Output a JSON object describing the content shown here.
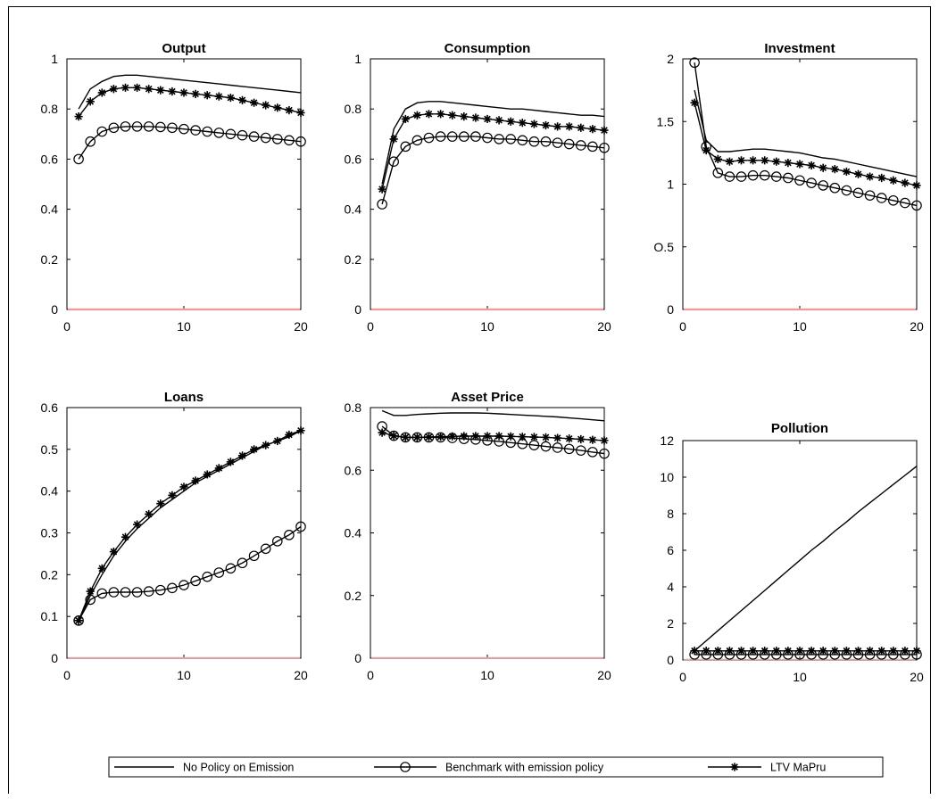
{
  "legend": {
    "entries": [
      {
        "name": "No Policy on Emission",
        "marker": "none"
      },
      {
        "name": "Benchmark with emission policy",
        "marker": "circle"
      },
      {
        "name": "LTV MaPru",
        "marker": "star"
      }
    ]
  },
  "colors": {
    "line": "#000000",
    "zero_line": "#ff9a9a",
    "background": "#ffffff"
  },
  "chart_data": [
    {
      "type": "line",
      "title": "Output",
      "xlabel": "",
      "ylabel": "",
      "xlim": [
        0,
        20
      ],
      "ylim": [
        0,
        1
      ],
      "xticks": [
        0,
        10,
        20
      ],
      "yticks": [
        0,
        0.2,
        0.4,
        0.6,
        0.8,
        1
      ],
      "ytick_labels": [
        "0",
        "0.2",
        "0.4",
        "0.6",
        "0.8",
        "1"
      ],
      "grid": false,
      "zero_line": true,
      "x": [
        1,
        2,
        3,
        4,
        5,
        6,
        7,
        8,
        9,
        10,
        11,
        12,
        13,
        14,
        15,
        16,
        17,
        18,
        19,
        20
      ],
      "series": [
        {
          "marker": "none",
          "values": [
            0.8,
            0.88,
            0.91,
            0.93,
            0.935,
            0.935,
            0.93,
            0.925,
            0.92,
            0.915,
            0.91,
            0.905,
            0.9,
            0.895,
            0.89,
            0.885,
            0.88,
            0.875,
            0.87,
            0.865
          ]
        },
        {
          "marker": "circle",
          "values": [
            0.6,
            0.67,
            0.71,
            0.725,
            0.73,
            0.73,
            0.73,
            0.728,
            0.725,
            0.72,
            0.715,
            0.71,
            0.705,
            0.7,
            0.695,
            0.69,
            0.685,
            0.68,
            0.675,
            0.67
          ]
        },
        {
          "marker": "star",
          "values": [
            0.77,
            0.83,
            0.865,
            0.88,
            0.885,
            0.885,
            0.88,
            0.875,
            0.87,
            0.865,
            0.86,
            0.855,
            0.85,
            0.845,
            0.835,
            0.825,
            0.815,
            0.805,
            0.795,
            0.785
          ]
        }
      ]
    },
    {
      "type": "line",
      "title": "Consumption",
      "xlabel": "",
      "ylabel": "",
      "xlim": [
        0,
        20
      ],
      "ylim": [
        0,
        1
      ],
      "xticks": [
        0,
        10,
        20
      ],
      "yticks": [
        0,
        0.2,
        0.4,
        0.6,
        0.8,
        1
      ],
      "ytick_labels": [
        "0",
        "0.2",
        "0.4",
        "0.6",
        "0.8",
        "1"
      ],
      "grid": false,
      "zero_line": true,
      "x": [
        1,
        2,
        3,
        4,
        5,
        6,
        7,
        8,
        9,
        10,
        11,
        12,
        13,
        14,
        15,
        16,
        17,
        18,
        19,
        20
      ],
      "series": [
        {
          "marker": "none",
          "values": [
            0.5,
            0.72,
            0.8,
            0.825,
            0.83,
            0.83,
            0.825,
            0.82,
            0.815,
            0.81,
            0.805,
            0.8,
            0.8,
            0.795,
            0.79,
            0.785,
            0.78,
            0.775,
            0.775,
            0.77
          ]
        },
        {
          "marker": "circle",
          "values": [
            0.42,
            0.59,
            0.65,
            0.675,
            0.685,
            0.69,
            0.69,
            0.69,
            0.69,
            0.685,
            0.68,
            0.68,
            0.675,
            0.67,
            0.67,
            0.665,
            0.66,
            0.655,
            0.65,
            0.645
          ]
        },
        {
          "marker": "star",
          "values": [
            0.48,
            0.68,
            0.76,
            0.775,
            0.78,
            0.78,
            0.775,
            0.77,
            0.765,
            0.76,
            0.755,
            0.75,
            0.745,
            0.74,
            0.735,
            0.73,
            0.73,
            0.725,
            0.72,
            0.715
          ]
        }
      ]
    },
    {
      "type": "line",
      "title": "Investment",
      "xlabel": "",
      "ylabel": "",
      "xlim": [
        0,
        20
      ],
      "ylim": [
        0,
        2
      ],
      "xticks": [
        0,
        10,
        20
      ],
      "yticks": [
        0,
        0.5,
        1,
        1.5,
        2
      ],
      "ytick_labels": [
        "0",
        "O.5",
        "1",
        "1.5",
        "2"
      ],
      "grid": false,
      "zero_line": true,
      "x": [
        1,
        2,
        3,
        4,
        5,
        6,
        7,
        8,
        9,
        10,
        11,
        12,
        13,
        14,
        15,
        16,
        17,
        18,
        19,
        20
      ],
      "series": [
        {
          "marker": "none",
          "values": [
            1.75,
            1.35,
            1.26,
            1.26,
            1.27,
            1.28,
            1.28,
            1.27,
            1.26,
            1.25,
            1.23,
            1.21,
            1.2,
            1.18,
            1.16,
            1.14,
            1.12,
            1.1,
            1.08,
            1.06
          ]
        },
        {
          "marker": "circle",
          "values": [
            1.97,
            1.3,
            1.09,
            1.06,
            1.06,
            1.07,
            1.07,
            1.06,
            1.05,
            1.03,
            1.01,
            0.99,
            0.97,
            0.95,
            0.93,
            0.91,
            0.89,
            0.87,
            0.85,
            0.83
          ]
        },
        {
          "marker": "star",
          "values": [
            1.65,
            1.27,
            1.2,
            1.18,
            1.19,
            1.19,
            1.19,
            1.18,
            1.17,
            1.16,
            1.15,
            1.13,
            1.12,
            1.1,
            1.08,
            1.06,
            1.05,
            1.03,
            1.01,
            0.99
          ]
        }
      ]
    },
    {
      "type": "line",
      "title": "Loans",
      "xlabel": "",
      "ylabel": "",
      "xlim": [
        0,
        20
      ],
      "ylim": [
        0,
        0.6
      ],
      "xticks": [
        0,
        10,
        20
      ],
      "yticks": [
        0,
        0.1,
        0.2,
        0.3,
        0.4,
        0.5,
        0.6
      ],
      "ytick_labels": [
        "0",
        "0.1",
        "0.2",
        "0.3",
        "0.4",
        "0.5",
        "0.6"
      ],
      "grid": false,
      "zero_line": true,
      "x": [
        1,
        2,
        3,
        4,
        5,
        6,
        7,
        8,
        9,
        10,
        11,
        12,
        13,
        14,
        15,
        16,
        17,
        18,
        19,
        20
      ],
      "series": [
        {
          "marker": "none",
          "values": [
            0.09,
            0.15,
            0.2,
            0.245,
            0.28,
            0.31,
            0.335,
            0.36,
            0.38,
            0.4,
            0.42,
            0.435,
            0.45,
            0.465,
            0.48,
            0.495,
            0.51,
            0.52,
            0.53,
            0.545
          ]
        },
        {
          "marker": "circle",
          "values": [
            0.09,
            0.14,
            0.155,
            0.158,
            0.158,
            0.158,
            0.16,
            0.163,
            0.168,
            0.175,
            0.185,
            0.195,
            0.205,
            0.215,
            0.228,
            0.245,
            0.262,
            0.28,
            0.295,
            0.315
          ]
        },
        {
          "marker": "star",
          "values": [
            0.09,
            0.16,
            0.215,
            0.255,
            0.29,
            0.32,
            0.345,
            0.37,
            0.39,
            0.41,
            0.425,
            0.44,
            0.455,
            0.47,
            0.485,
            0.5,
            0.51,
            0.52,
            0.535,
            0.545
          ]
        }
      ]
    },
    {
      "type": "line",
      "title": "Asset Price",
      "xlabel": "",
      "ylabel": "",
      "xlim": [
        0,
        20
      ],
      "ylim": [
        0,
        0.8
      ],
      "xticks": [
        0,
        10,
        20
      ],
      "yticks": [
        0,
        0.2,
        0.4,
        0.6,
        0.8
      ],
      "ytick_labels": [
        "0",
        "0.2",
        "0.4",
        "0.6",
        "0.8"
      ],
      "grid": false,
      "zero_line": true,
      "x": [
        1,
        2,
        3,
        4,
        5,
        6,
        7,
        8,
        9,
        10,
        11,
        12,
        13,
        14,
        15,
        16,
        17,
        18,
        19,
        20
      ],
      "series": [
        {
          "marker": "none",
          "values": [
            0.79,
            0.775,
            0.775,
            0.778,
            0.78,
            0.782,
            0.783,
            0.783,
            0.783,
            0.782,
            0.78,
            0.778,
            0.776,
            0.774,
            0.772,
            0.77,
            0.767,
            0.764,
            0.761,
            0.758
          ]
        },
        {
          "marker": "circle",
          "values": [
            0.74,
            0.71,
            0.705,
            0.705,
            0.705,
            0.705,
            0.703,
            0.7,
            0.698,
            0.695,
            0.692,
            0.688,
            0.684,
            0.68,
            0.676,
            0.672,
            0.668,
            0.663,
            0.658,
            0.653
          ]
        },
        {
          "marker": "star",
          "values": [
            0.72,
            0.71,
            0.705,
            0.705,
            0.706,
            0.707,
            0.708,
            0.709,
            0.709,
            0.709,
            0.709,
            0.708,
            0.707,
            0.706,
            0.705,
            0.703,
            0.701,
            0.699,
            0.697,
            0.695
          ]
        }
      ]
    },
    {
      "type": "line",
      "title": "Pollution",
      "xlabel": "",
      "ylabel": "",
      "xlim": [
        0,
        20
      ],
      "ylim": [
        0,
        12
      ],
      "xticks": [
        0,
        10,
        20
      ],
      "yticks": [
        0,
        2,
        4,
        6,
        8,
        10,
        12
      ],
      "ytick_labels": [
        "0",
        "2",
        "4",
        "6",
        "8",
        "10",
        "12"
      ],
      "grid": false,
      "zero_line": true,
      "x": [
        1,
        2,
        3,
        4,
        5,
        6,
        7,
        8,
        9,
        10,
        11,
        12,
        13,
        14,
        15,
        16,
        17,
        18,
        19,
        20
      ],
      "series": [
        {
          "marker": "none",
          "values": [
            0.5,
            1.05,
            1.6,
            2.15,
            2.7,
            3.25,
            3.8,
            4.35,
            4.9,
            5.45,
            6.0,
            6.5,
            7.05,
            7.55,
            8.1,
            8.6,
            9.1,
            9.6,
            10.1,
            10.6
          ]
        },
        {
          "marker": "circle",
          "values": [
            0.3,
            0.3,
            0.3,
            0.3,
            0.3,
            0.3,
            0.3,
            0.3,
            0.3,
            0.3,
            0.3,
            0.3,
            0.3,
            0.3,
            0.3,
            0.3,
            0.3,
            0.3,
            0.3,
            0.3
          ]
        },
        {
          "marker": "star",
          "values": [
            0.5,
            0.5,
            0.5,
            0.5,
            0.5,
            0.5,
            0.5,
            0.5,
            0.5,
            0.5,
            0.5,
            0.5,
            0.5,
            0.5,
            0.5,
            0.5,
            0.5,
            0.5,
            0.5,
            0.5
          ]
        }
      ]
    }
  ]
}
